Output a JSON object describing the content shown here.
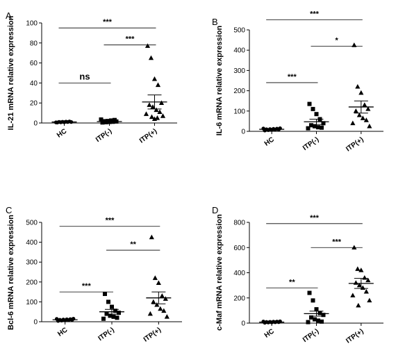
{
  "chart_data": [
    {
      "panel_letter": "A",
      "type": "scatter",
      "ylabel": "IL-21 mRNA relative expression",
      "categories": [
        "HC",
        "ITP(-)",
        "ITP(+)"
      ],
      "ylim": [
        0,
        100
      ],
      "yticks": [
        0,
        20,
        40,
        60,
        80,
        100
      ],
      "marker_shapes": [
        "circle",
        "square",
        "triangle"
      ],
      "groups": [
        {
          "category": "HC",
          "marker": "circle",
          "mean": 1,
          "sem": 0.3,
          "values": [
            0.5,
            0.7,
            0.8,
            1.0,
            1.0,
            1.1,
            1.2,
            1.3,
            1.5,
            0.6
          ]
        },
        {
          "category": "ITP(-)",
          "marker": "square",
          "mean": 1.5,
          "sem": 0.4,
          "values": [
            0.5,
            0.8,
            1.0,
            1.2,
            1.5,
            1.8,
            2.0,
            2.5,
            3.0,
            3.5
          ]
        },
        {
          "category": "ITP(+)",
          "marker": "triangle",
          "mean": 21,
          "sem": 7,
          "values": [
            77,
            65,
            44,
            38,
            20,
            18,
            16,
            13,
            11,
            9,
            7,
            6,
            5,
            4
          ]
        }
      ],
      "comparisons": [
        {
          "from": 0,
          "to": 1,
          "label": "ns",
          "y": 40
        },
        {
          "from": 1,
          "to": 2,
          "label": "***",
          "y": 78
        },
        {
          "from": 0,
          "to": 2,
          "label": "***",
          "y": 95
        }
      ]
    },
    {
      "panel_letter": "B",
      "type": "scatter",
      "ylabel": "IL-6 mRNA relative expression",
      "categories": [
        "HC",
        "ITP(-)",
        "ITP(+)"
      ],
      "ylim": [
        0,
        500
      ],
      "yticks": [
        0,
        100,
        200,
        300,
        400,
        500
      ],
      "marker_shapes": [
        "circle",
        "square",
        "triangle"
      ],
      "groups": [
        {
          "category": "HC",
          "marker": "circle",
          "mean": 10,
          "sem": 2,
          "values": [
            4,
            6,
            7,
            8,
            9,
            10,
            11,
            12,
            13,
            14,
            15
          ]
        },
        {
          "category": "ITP(-)",
          "marker": "square",
          "mean": 47,
          "sem": 13,
          "values": [
            135,
            110,
            85,
            60,
            40,
            30,
            25,
            20,
            18,
            15
          ]
        },
        {
          "category": "ITP(+)",
          "marker": "triangle",
          "mean": 120,
          "sem": 30,
          "values": [
            425,
            220,
            190,
            130,
            110,
            100,
            80,
            65,
            55,
            40,
            25
          ]
        }
      ],
      "comparisons": [
        {
          "from": 0,
          "to": 1,
          "label": "***",
          "y": 240
        },
        {
          "from": 1,
          "to": 2,
          "label": "*",
          "y": 420
        },
        {
          "from": 0,
          "to": 2,
          "label": "***",
          "y": 550
        }
      ]
    },
    {
      "panel_letter": "C",
      "type": "scatter",
      "ylabel": "Bcl-6 mRNA relative expression",
      "categories": [
        "HC",
        "ITP(-)",
        "ITP(+)"
      ],
      "ylim": [
        0,
        500
      ],
      "yticks": [
        0,
        100,
        200,
        300,
        400,
        500
      ],
      "marker_shapes": [
        "circle",
        "square",
        "triangle"
      ],
      "groups": [
        {
          "category": "HC",
          "marker": "circle",
          "mean": 10,
          "sem": 2,
          "values": [
            4,
            6,
            7,
            8,
            9,
            10,
            11,
            12,
            13,
            14,
            15
          ]
        },
        {
          "category": "ITP(-)",
          "marker": "square",
          "mean": 50,
          "sem": 12,
          "values": [
            140,
            100,
            75,
            55,
            45,
            40,
            30,
            25,
            20,
            15
          ]
        },
        {
          "category": "ITP(+)",
          "marker": "triangle",
          "mean": 120,
          "sem": 30,
          "values": [
            425,
            220,
            195,
            130,
            115,
            100,
            85,
            65,
            55,
            40,
            25
          ]
        }
      ],
      "comparisons": [
        {
          "from": 0,
          "to": 1,
          "label": "***",
          "y": 150
        },
        {
          "from": 1,
          "to": 2,
          "label": "**",
          "y": 360
        },
        {
          "from": 0,
          "to": 2,
          "label": "***",
          "y": 480
        }
      ]
    },
    {
      "panel_letter": "D",
      "type": "scatter",
      "ylabel": "c-Maf mRNA relative expression",
      "categories": [
        "HC",
        "ITP(-)",
        "ITP(+)"
      ],
      "ylim": [
        0,
        800
      ],
      "yticks": [
        0,
        200,
        400,
        600,
        800
      ],
      "marker_shapes": [
        "circle",
        "square",
        "triangle"
      ],
      "groups": [
        {
          "category": "HC",
          "marker": "circle",
          "mean": 8,
          "sem": 2,
          "values": [
            3,
            5,
            6,
            7,
            8,
            9,
            10,
            11,
            12,
            13,
            14
          ]
        },
        {
          "category": "ITP(-)",
          "marker": "square",
          "mean": 75,
          "sem": 20,
          "values": [
            240,
            180,
            110,
            80,
            65,
            45,
            30,
            20,
            12,
            8
          ]
        },
        {
          "category": "ITP(+)",
          "marker": "triangle",
          "mean": 315,
          "sem": 40,
          "values": [
            600,
            430,
            420,
            360,
            340,
            320,
            300,
            280,
            250,
            220,
            180,
            140
          ]
        }
      ],
      "comparisons": [
        {
          "from": 0,
          "to": 1,
          "label": "**",
          "y": 280
        },
        {
          "from": 1,
          "to": 2,
          "label": "***",
          "y": 600
        },
        {
          "from": 0,
          "to": 2,
          "label": "***",
          "y": 790
        }
      ]
    }
  ]
}
